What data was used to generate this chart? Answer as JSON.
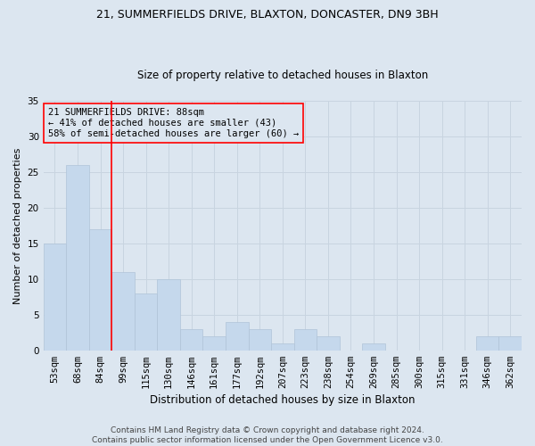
{
  "title1": "21, SUMMERFIELDS DRIVE, BLAXTON, DONCASTER, DN9 3BH",
  "title2": "Size of property relative to detached houses in Blaxton",
  "xlabel": "Distribution of detached houses by size in Blaxton",
  "ylabel": "Number of detached properties",
  "categories": [
    "53sqm",
    "68sqm",
    "84sqm",
    "99sqm",
    "115sqm",
    "130sqm",
    "146sqm",
    "161sqm",
    "177sqm",
    "192sqm",
    "207sqm",
    "223sqm",
    "238sqm",
    "254sqm",
    "269sqm",
    "285sqm",
    "300sqm",
    "315sqm",
    "331sqm",
    "346sqm",
    "362sqm"
  ],
  "values": [
    15,
    26,
    17,
    11,
    8,
    10,
    3,
    2,
    4,
    3,
    1,
    3,
    2,
    0,
    1,
    0,
    0,
    0,
    0,
    2,
    2
  ],
  "bar_color": "#c5d8ec",
  "bar_edgecolor": "#b0c4d8",
  "grid_color": "#c8d4e0",
  "bg_color": "#dce6f0",
  "annotation_text": "21 SUMMERFIELDS DRIVE: 88sqm\n← 41% of detached houses are smaller (43)\n58% of semi-detached houses are larger (60) →",
  "footer": "Contains HM Land Registry data © Crown copyright and database right 2024.\nContains public sector information licensed under the Open Government Licence v3.0.",
  "ylim": [
    0,
    35
  ],
  "yticks": [
    0,
    5,
    10,
    15,
    20,
    25,
    30,
    35
  ],
  "vline_pos": 2.5,
  "title1_fontsize": 9,
  "title2_fontsize": 8.5,
  "xlabel_fontsize": 8.5,
  "ylabel_fontsize": 8,
  "tick_fontsize": 7.5,
  "annot_fontsize": 7.5,
  "footer_fontsize": 6.5
}
